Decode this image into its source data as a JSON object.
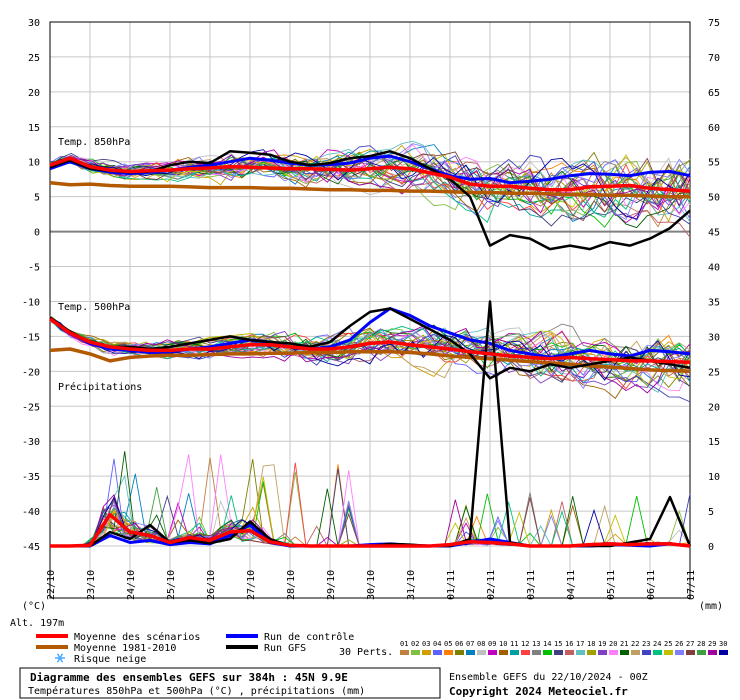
{
  "chart_data": {
    "type": "line",
    "title": "Diagramme des ensembles GEFS sur 384h : 45N 9.9E",
    "subtitle": "Températures 850hPa et 500hPa (°C) , précipitations (mm)",
    "left_unit": "(°C)",
    "right_unit": "(mm)",
    "altitude": "Alt. 197m",
    "left_axis": {
      "ylim": [
        -45,
        30
      ],
      "ticks": [
        "30",
        "25",
        "20",
        "15",
        "10",
        "5",
        "0",
        "-5",
        "-10",
        "-15",
        "-20",
        "-25",
        "-30",
        "-35",
        "-40",
        "-45"
      ]
    },
    "right_axis": {
      "ylim": [
        0,
        75
      ],
      "ticks": [
        "75",
        "70",
        "65",
        "60",
        "55",
        "50",
        "45",
        "40",
        "35",
        "30",
        "25",
        "20",
        "15",
        "10",
        "5",
        "0"
      ]
    },
    "x_ticks": [
      "22/10",
      "23/10",
      "24/10",
      "25/10",
      "26/10",
      "27/10",
      "28/10",
      "29/10",
      "30/10",
      "31/10",
      "01/11",
      "02/11",
      "03/11",
      "04/11",
      "05/11",
      "06/11",
      "07/11"
    ],
    "x_range_hours": [
      0,
      384
    ],
    "grid": true,
    "panel_labels": [
      "Temp. 850hPa",
      "Temp. 500hPa",
      "Précipitations"
    ],
    "members": 30,
    "series": [
      {
        "name": "Moyenne des scénarios",
        "panel": "Temp. 850hPa",
        "color": "#ff0000",
        "x": [
          0,
          12,
          24,
          36,
          48,
          60,
          72,
          84,
          96,
          108,
          120,
          132,
          144,
          156,
          168,
          180,
          192,
          204,
          216,
          228,
          240,
          252,
          264,
          276,
          288,
          300,
          312,
          324,
          336,
          348,
          360,
          372,
          384
        ],
        "values": [
          9.5,
          10.5,
          9.3,
          8.8,
          8.6,
          8.7,
          8.8,
          9.0,
          9.1,
          9.3,
          9.2,
          9.1,
          9.0,
          9.0,
          8.9,
          8.8,
          9.0,
          9.2,
          9.0,
          8.4,
          7.8,
          6.8,
          6.5,
          6.5,
          6.2,
          6.0,
          6.0,
          6.4,
          6.5,
          6.6,
          6.2,
          6.0,
          5.8
        ]
      },
      {
        "name": "Moyenne 1981-2010",
        "panel": "Temp. 850hPa",
        "color": "#b35900",
        "x": [
          0,
          12,
          24,
          36,
          48,
          60,
          72,
          84,
          96,
          108,
          120,
          132,
          144,
          156,
          168,
          180,
          192,
          204,
          216,
          228,
          240,
          252,
          264,
          276,
          288,
          300,
          312,
          324,
          336,
          348,
          360,
          372,
          384
        ],
        "values": [
          7.0,
          6.7,
          6.8,
          6.6,
          6.5,
          6.5,
          6.5,
          6.4,
          6.3,
          6.3,
          6.3,
          6.2,
          6.2,
          6.1,
          6.0,
          6.0,
          5.9,
          5.9,
          5.8,
          5.8,
          5.7,
          5.6,
          5.6,
          5.5,
          5.5,
          5.4,
          5.3,
          5.3,
          5.2,
          5.2,
          5.1,
          5.0,
          5.0
        ]
      },
      {
        "name": "Run de contrôle",
        "panel": "Temp. 850hPa",
        "color": "#0000ff",
        "x": [
          0,
          12,
          24,
          36,
          48,
          60,
          72,
          84,
          96,
          108,
          120,
          132,
          144,
          156,
          168,
          180,
          192,
          204,
          216,
          228,
          240,
          252,
          264,
          276,
          288,
          300,
          312,
          324,
          336,
          348,
          360,
          372,
          384
        ],
        "values": [
          9.0,
          10.0,
          9.0,
          8.5,
          8.3,
          8.5,
          8.8,
          9.2,
          9.5,
          10.0,
          10.5,
          10.2,
          9.8,
          9.5,
          9.6,
          9.8,
          10.5,
          10.8,
          10.0,
          9.0,
          8.0,
          7.5,
          7.6,
          7.0,
          7.2,
          7.5,
          8.0,
          8.3,
          8.2,
          8.0,
          8.5,
          8.6,
          8.0
        ]
      },
      {
        "name": "Run GFS",
        "panel": "Temp. 850hPa",
        "color": "#000000",
        "x": [
          0,
          12,
          24,
          36,
          48,
          60,
          72,
          84,
          96,
          108,
          120,
          132,
          144,
          156,
          168,
          180,
          192,
          204,
          216,
          228,
          240,
          252,
          264,
          276,
          288,
          300,
          312,
          324,
          336,
          348,
          360,
          372,
          384
        ],
        "values": [
          9.2,
          10.2,
          9.0,
          8.7,
          8.5,
          8.6,
          9.5,
          10.0,
          9.8,
          11.5,
          11.3,
          11.0,
          10.0,
          9.5,
          9.8,
          10.5,
          10.8,
          11.5,
          10.5,
          9.0,
          7.5,
          5.0,
          -2.0,
          -0.5,
          -1.0,
          -2.5,
          -2.0,
          -2.5,
          -1.5,
          -2.0,
          -1.0,
          0.5,
          3.0
        ]
      },
      {
        "name": "Moyenne des scénarios",
        "panel": "Temp. 500hPa",
        "color": "#ff0000",
        "x": [
          0,
          12,
          24,
          36,
          48,
          60,
          72,
          84,
          96,
          108,
          120,
          132,
          144,
          156,
          168,
          180,
          192,
          204,
          216,
          228,
          240,
          252,
          264,
          276,
          288,
          300,
          312,
          324,
          336,
          348,
          360,
          372,
          384
        ],
        "values": [
          -12.5,
          -14.5,
          -15.8,
          -16.5,
          -16.8,
          -17.0,
          -17.0,
          -16.8,
          -16.8,
          -16.5,
          -16.2,
          -16.2,
          -16.5,
          -16.8,
          -16.8,
          -16.5,
          -16.0,
          -15.8,
          -16.2,
          -16.5,
          -16.8,
          -17.2,
          -17.5,
          -17.8,
          -18.0,
          -18.2,
          -18.0,
          -18.2,
          -18.3,
          -18.5,
          -18.5,
          -18.6,
          -18.7
        ]
      },
      {
        "name": "Moyenne 1981-2010",
        "panel": "Temp. 500hPa",
        "color": "#b35900",
        "x": [
          0,
          12,
          24,
          36,
          48,
          60,
          72,
          84,
          96,
          108,
          120,
          132,
          144,
          156,
          168,
          180,
          192,
          204,
          216,
          228,
          240,
          252,
          264,
          276,
          288,
          300,
          312,
          324,
          336,
          348,
          360,
          372,
          384
        ],
        "values": [
          -17.0,
          -16.8,
          -17.5,
          -18.5,
          -18.0,
          -17.8,
          -17.7,
          -17.7,
          -17.6,
          -17.5,
          -17.5,
          -17.4,
          -17.4,
          -17.3,
          -17.3,
          -17.2,
          -17.2,
          -17.2,
          -17.3,
          -17.5,
          -17.8,
          -18.0,
          -18.2,
          -18.4,
          -18.6,
          -18.8,
          -19.0,
          -19.2,
          -19.4,
          -19.6,
          -19.8,
          -19.9,
          -20.0
        ]
      },
      {
        "name": "Run de contrôle",
        "panel": "Temp. 500hPa",
        "color": "#0000ff",
        "x": [
          0,
          12,
          24,
          36,
          48,
          60,
          72,
          84,
          96,
          108,
          120,
          132,
          144,
          156,
          168,
          180,
          192,
          204,
          216,
          228,
          240,
          252,
          264,
          276,
          288,
          300,
          312,
          324,
          336,
          348,
          360,
          372,
          384
        ],
        "values": [
          -12.5,
          -14.5,
          -16.0,
          -16.8,
          -17.0,
          -17.3,
          -17.2,
          -16.8,
          -16.5,
          -16.0,
          -15.5,
          -15.8,
          -16.5,
          -16.8,
          -16.5,
          -15.5,
          -13.0,
          -11.0,
          -12.0,
          -13.5,
          -14.5,
          -15.5,
          -16.0,
          -17.0,
          -17.5,
          -18.0,
          -17.5,
          -17.0,
          -17.5,
          -17.8,
          -17.0,
          -17.2,
          -17.5
        ]
      },
      {
        "name": "Run GFS",
        "panel": "Temp. 500hPa",
        "color": "#000000",
        "x": [
          0,
          12,
          24,
          36,
          48,
          60,
          72,
          84,
          96,
          108,
          120,
          132,
          144,
          156,
          168,
          180,
          192,
          204,
          216,
          228,
          240,
          252,
          264,
          276,
          288,
          300,
          312,
          324,
          336,
          348,
          360,
          372,
          384
        ],
        "values": [
          -12.3,
          -14.3,
          -15.8,
          -16.5,
          -16.5,
          -16.8,
          -16.5,
          -16.0,
          -15.5,
          -15.0,
          -15.5,
          -15.8,
          -16.0,
          -16.5,
          -15.8,
          -13.5,
          -11.5,
          -11.0,
          -12.5,
          -14.0,
          -15.5,
          -17.5,
          -21.0,
          -19.5,
          -20.0,
          -19.0,
          -19.5,
          -19.0,
          -18.5,
          -18.0,
          -18.5,
          -19.0,
          -19.5
        ]
      },
      {
        "name": "Moyenne des scénarios",
        "panel": "Précipitations",
        "color": "#ff0000",
        "x": [
          0,
          12,
          24,
          36,
          48,
          60,
          72,
          84,
          96,
          108,
          120,
          132,
          144,
          156,
          168,
          180,
          192,
          204,
          216,
          228,
          240,
          252,
          264,
          276,
          288,
          300,
          312,
          324,
          336,
          348,
          360,
          372,
          384
        ],
        "values": [
          0,
          0,
          0.1,
          4.5,
          2.0,
          1.5,
          0.5,
          1.2,
          0.8,
          2.0,
          2.2,
          0.6,
          0.1,
          0,
          0,
          0,
          0,
          0,
          0,
          0,
          0.2,
          0.6,
          0.5,
          0.3,
          0,
          0,
          0,
          0.2,
          0.3,
          0.2,
          0.3,
          0.3,
          0
        ]
      },
      {
        "name": "Run de contrôle",
        "panel": "Précipitations",
        "color": "#0000ff",
        "x": [
          0,
          12,
          24,
          36,
          48,
          60,
          72,
          84,
          96,
          108,
          120,
          132,
          144,
          156,
          168,
          180,
          192,
          204,
          216,
          228,
          240,
          252,
          264,
          276,
          288,
          300,
          312,
          324,
          336,
          348,
          360,
          372,
          384
        ],
        "values": [
          0,
          0,
          0,
          1.5,
          0.5,
          0.8,
          0.2,
          0.5,
          0.3,
          1.5,
          3.0,
          0.5,
          0,
          0,
          0,
          0,
          0.2,
          0.3,
          0.1,
          0,
          0,
          0.5,
          1.0,
          0.5,
          0,
          0,
          0,
          0,
          0.2,
          0.1,
          0,
          0.3,
          0
        ]
      },
      {
        "name": "Run GFS",
        "panel": "Précipitations",
        "color": "#000000",
        "x": [
          0,
          12,
          24,
          36,
          48,
          60,
          72,
          84,
          96,
          108,
          120,
          132,
          144,
          156,
          168,
          180,
          192,
          204,
          216,
          228,
          240,
          252,
          264,
          276,
          288,
          300,
          312,
          324,
          336,
          348,
          360,
          372,
          384
        ],
        "values": [
          0,
          0,
          0,
          2.0,
          1.0,
          3.0,
          0.5,
          0.8,
          0.4,
          1.0,
          3.5,
          1.0,
          0,
          0,
          0,
          0,
          0,
          0.3,
          0.2,
          0,
          0,
          1.0,
          35.0,
          0.5,
          0,
          0,
          0,
          0,
          0,
          0.5,
          1.0,
          7.0,
          0
        ]
      }
    ]
  },
  "legend": {
    "items": [
      {
        "label": "Moyenne des scénarios",
        "color": "#ff0000"
      },
      {
        "label": "Moyenne 1981-2010",
        "color": "#b35900"
      },
      {
        "label": "Run de contrôle",
        "color": "#0000ff"
      },
      {
        "label": "Run GFS",
        "color": "#000000"
      },
      {
        "label": "Risque neige",
        "color": "#4aa8ff",
        "icon": "snowflake-icon"
      }
    ],
    "perts_label": "30 Perts.",
    "member_numbers": [
      "01",
      "02",
      "03",
      "04",
      "05",
      "06",
      "07",
      "08",
      "09",
      "10",
      "11",
      "12",
      "13",
      "14",
      "15",
      "16",
      "17",
      "18",
      "19",
      "20",
      "21",
      "22",
      "23",
      "24",
      "25",
      "26",
      "27",
      "28",
      "29",
      "30"
    ],
    "member_colors": [
      "#c08040",
      "#80c040",
      "#d0a000",
      "#6060ff",
      "#ff8000",
      "#808000",
      "#0080c0",
      "#c0c0c0",
      "#c000c0",
      "#a06000",
      "#00a0a0",
      "#ff4040",
      "#808080",
      "#00c000",
      "#404080",
      "#c06060",
      "#60c0c0",
      "#a0a000",
      "#8040c0",
      "#ff80ff",
      "#006000",
      "#c0a060",
      "#4040c0",
      "#00c080",
      "#c0c000",
      "#8080ff",
      "#804040",
      "#40a040",
      "#a000a0",
      "#0000a0"
    ]
  },
  "footer": {
    "title": "Diagramme des ensembles GEFS sur 384h : 45N 9.9E",
    "subtitle": "Températures 850hPa et 500hPa (°C) , précipitations (mm)",
    "run": "Ensemble GEFS du 22/10/2024 - 00Z",
    "copyright": "Copyright 2024 Meteociel.fr"
  }
}
